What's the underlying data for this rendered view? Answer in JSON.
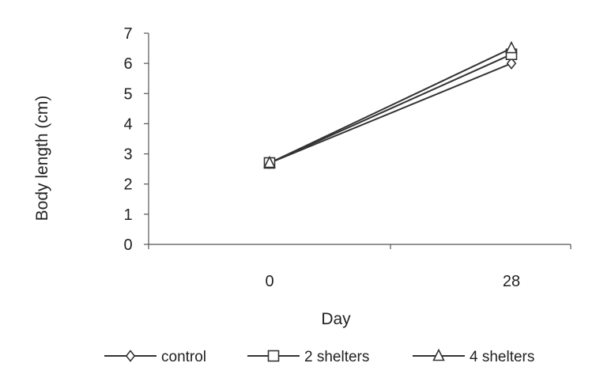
{
  "chart_data": {
    "type": "line",
    "title": "",
    "xlabel": "Day",
    "ylabel": "Body length (cm)",
    "x": [
      "0",
      "28"
    ],
    "ylim": [
      0,
      7
    ],
    "yticks": [
      "0",
      "1",
      "2",
      "3",
      "4",
      "5",
      "6",
      "7"
    ],
    "grid": false,
    "legend_position": "bottom",
    "series": [
      {
        "name": "control",
        "marker": "diamond",
        "values": [
          2.7,
          6.0
        ]
      },
      {
        "name": "2 shelters",
        "marker": "square",
        "values": [
          2.7,
          6.3
        ]
      },
      {
        "name": "4 shelters",
        "marker": "triangle",
        "values": [
          2.7,
          6.5
        ]
      }
    ],
    "colors": {
      "line": "#333333",
      "axis": "#555555",
      "text": "#222222"
    }
  }
}
